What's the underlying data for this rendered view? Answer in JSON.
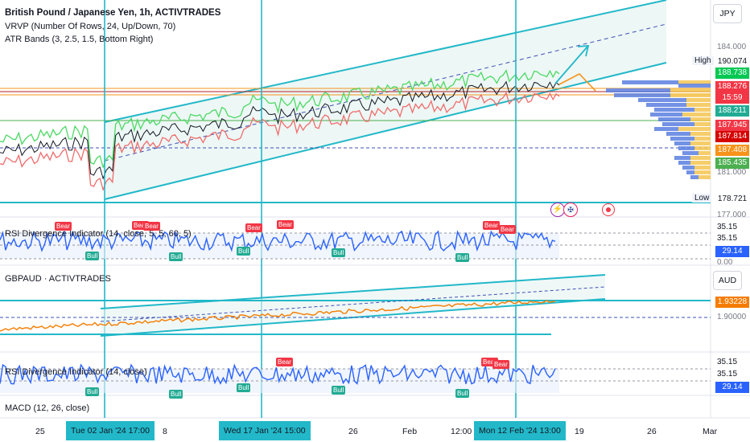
{
  "main": {
    "title": "British Pound / Japanese Yen, 1h, ACTIVTRADES",
    "indicators": [
      "VRVP (Number Of Rows, 24, Up/Down, 70)",
      "ATR Bands (3, 2.5, 1.5, Bottom Right)"
    ],
    "currency": "JPY",
    "high_label": "High",
    "high_value": "190.074",
    "low_label": "Low",
    "low_value": "178.721",
    "axis_labels": [
      "184.000",
      "181.000",
      "177.000"
    ],
    "price_tags": [
      {
        "value": "188.738",
        "color": "#00c853"
      },
      {
        "value": "188.276",
        "color": "#f23645"
      },
      {
        "value": "15:59",
        "color": "#f23645"
      },
      {
        "value": "188.211",
        "color": "#22ab94"
      },
      {
        "value": "187.945",
        "color": "#f23645"
      },
      {
        "value": "187.814",
        "color": "#d50000"
      },
      {
        "value": "187.408",
        "color": "#f7931a"
      },
      {
        "value": "185.435",
        "color": "#4caf50"
      }
    ]
  },
  "rsi_top": {
    "title": "RSI Divergence Indicator (14, close, 5, 5, 60, 5)",
    "levels": [
      "35.15",
      "35.15",
      "0.00"
    ],
    "value_tag": "29.14"
  },
  "gbpaud": {
    "title": "GBPAUD · ACTIVTRADES",
    "currency": "AUD",
    "value_tag": "1.93228",
    "axis_label": "1.90000"
  },
  "rsi_bottom": {
    "title": "RSI Divergence Indicator (14, close)",
    "levels": [
      "35.15",
      "35.15"
    ],
    "value_tag": "29.14"
  },
  "macd": {
    "title": "MACD (12, 26, close)"
  },
  "signal_labels": {
    "bear": "Bear",
    "bull": "Bull"
  },
  "time_axis": {
    "labels": [
      "25",
      "8",
      "26",
      "Feb",
      "12:00",
      "19",
      "26",
      "Mar"
    ],
    "highlights": [
      "Tue 02 Jan '24   17:00",
      "Wed 17 Jan '24   15:00",
      "Mon 12 Feb '24   13:00"
    ]
  }
}
